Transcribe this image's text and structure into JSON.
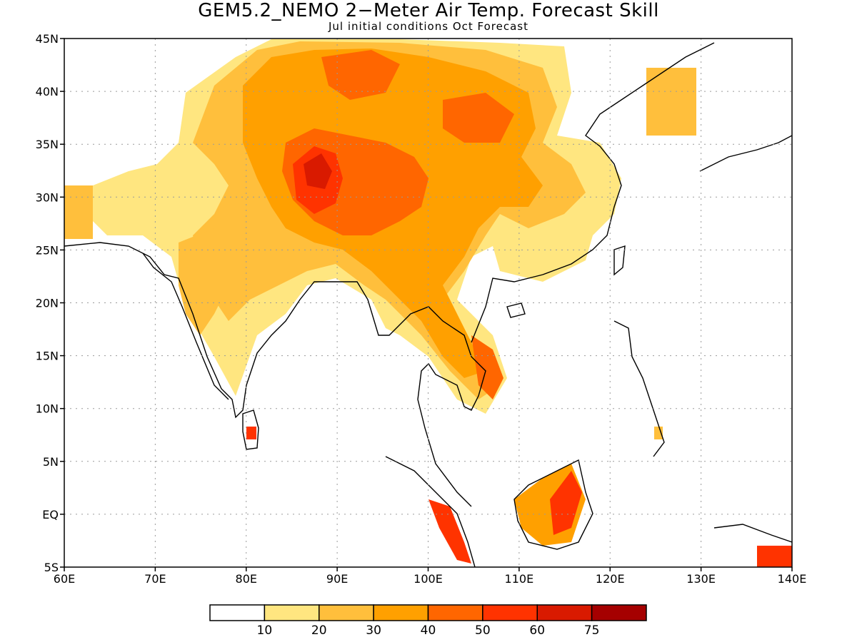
{
  "header": {
    "title": "GEM5.2_NEMO 2−Meter Air Temp. Forecast Skill",
    "subtitle": "Jul initial conditions  Oct Forecast"
  },
  "map": {
    "lon_range": [
      60,
      140
    ],
    "lat_range": [
      -5,
      45
    ],
    "lon_ticks": [
      {
        "value": 60,
        "label": "60E"
      },
      {
        "value": 70,
        "label": "70E"
      },
      {
        "value": 80,
        "label": "80E"
      },
      {
        "value": 90,
        "label": "90E"
      },
      {
        "value": 100,
        "label": "100E"
      },
      {
        "value": 110,
        "label": "110E"
      },
      {
        "value": 120,
        "label": "120E"
      },
      {
        "value": 130,
        "label": "130E"
      },
      {
        "value": 140,
        "label": "140E"
      }
    ],
    "lat_ticks": [
      {
        "value": 45,
        "label": "45N"
      },
      {
        "value": 40,
        "label": "40N"
      },
      {
        "value": 35,
        "label": "35N"
      },
      {
        "value": 30,
        "label": "30N"
      },
      {
        "value": 25,
        "label": "25N"
      },
      {
        "value": 20,
        "label": "20N"
      },
      {
        "value": 15,
        "label": "15N"
      },
      {
        "value": 10,
        "label": "10N"
      },
      {
        "value": 5,
        "label": "5N"
      },
      {
        "value": 0,
        "label": "EQ"
      },
      {
        "value": -5,
        "label": "5S"
      }
    ],
    "gridlines": "dotted"
  },
  "colorbar": {
    "colors": [
      "#ffffff",
      "#ffe680",
      "#ffbf3c",
      "#ffa000",
      "#ff6600",
      "#ff3300",
      "#d91a00",
      "#a50000"
    ],
    "labels": [
      "10",
      "20",
      "30",
      "40",
      "50",
      "60",
      "75"
    ]
  }
}
